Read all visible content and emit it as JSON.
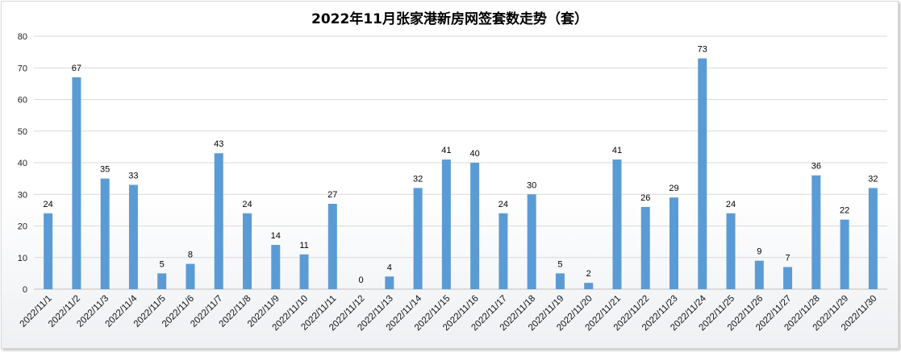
{
  "chart_data": {
    "type": "bar",
    "title": "2022年11月张家港新房网签套数走势（套）",
    "xlabel": "",
    "ylabel": "",
    "ylim": [
      0,
      80
    ],
    "yticks": [
      0,
      10,
      20,
      30,
      40,
      50,
      60,
      70,
      80
    ],
    "grid": true,
    "legend": "none",
    "bar_color": "#5b9bd5",
    "categories": [
      "2022/11/1",
      "2022/11/2",
      "2022/11/3",
      "2022/11/4",
      "2022/11/5",
      "2022/11/6",
      "2022/11/7",
      "2022/11/8",
      "2022/11/9",
      "2022/11/10",
      "2022/11/11",
      "2022/11/12",
      "2022/11/13",
      "2022/11/14",
      "2022/11/15",
      "2022/11/16",
      "2022/11/17",
      "2022/11/18",
      "2022/11/19",
      "2022/11/20",
      "2022/11/21",
      "2022/11/22",
      "2022/11/23",
      "2022/11/24",
      "2022/11/25",
      "2022/11/26",
      "2022/11/27",
      "2022/11/28",
      "2022/11/29",
      "2022/11/30"
    ],
    "values": [
      24,
      67,
      35,
      33,
      5,
      8,
      43,
      24,
      14,
      11,
      27,
      0,
      4,
      32,
      41,
      40,
      24,
      30,
      5,
      2,
      41,
      26,
      29,
      73,
      24,
      9,
      7,
      36,
      22,
      32
    ]
  }
}
